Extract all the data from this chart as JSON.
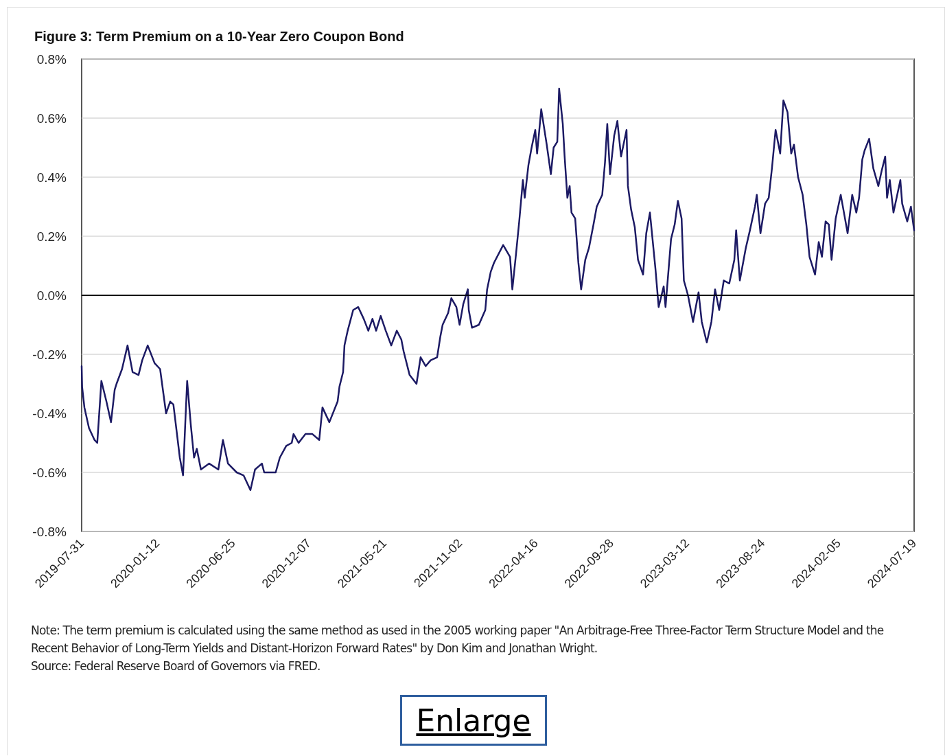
{
  "chart_data": {
    "type": "line",
    "title": "Figure 3: Term Premium on a 10-Year Zero Coupon Bond",
    "annotations": [
      "Note: The term premium is calculated using the same method as used in the 2005 working paper \"An Arbitrage-Free Three-Factor Term Structure Model and the Recent Behavior of Long-Term Yields and Distant-Horizon Forward Rates\" by Don Kim and Jonathan Wright.",
      "Source: Federal Reserve Board of Governors via FRED.",
      "Enlarge"
    ],
    "x": [
      "2019-07-31",
      "2019-08-01",
      "2019-08-06",
      "2019-08-16",
      "2019-08-28",
      "2019-09-03",
      "2019-09-12",
      "2019-09-23",
      "2019-10-03",
      "2019-10-11",
      "2019-10-15",
      "2019-10-27",
      "2019-11-08",
      "2019-11-19",
      "2019-12-02",
      "2019-12-10",
      "2019-12-22",
      "2020-01-06",
      "2020-01-18",
      "2020-01-31",
      "2020-02-09",
      "2020-02-16",
      "2020-03-01",
      "2020-03-08",
      "2020-03-13",
      "2020-03-17",
      "2020-03-25",
      "2020-04-01",
      "2020-04-07",
      "2020-04-16",
      "2020-05-04",
      "2020-05-24",
      "2020-06-03",
      "2020-06-14",
      "2020-07-03",
      "2020-07-18",
      "2020-08-02",
      "2020-08-12",
      "2020-08-27",
      "2020-09-01",
      "2020-09-26",
      "2020-10-05",
      "2020-10-19",
      "2020-10-31",
      "2020-11-04",
      "2020-11-15",
      "2020-11-30",
      "2020-12-15",
      "2020-12-30",
      "2021-01-06",
      "2021-01-21",
      "2021-02-08",
      "2021-02-12",
      "2021-02-20",
      "2021-02-23",
      "2021-03-02",
      "2021-03-14",
      "2021-03-25",
      "2021-04-06",
      "2021-04-16",
      "2021-04-25",
      "2021-05-03",
      "2021-05-13",
      "2021-05-24",
      "2021-06-05",
      "2021-06-17",
      "2021-06-27",
      "2021-07-02",
      "2021-07-15",
      "2021-07-30",
      "2021-08-08",
      "2021-08-19",
      "2021-08-30",
      "2021-09-13",
      "2021-09-20",
      "2021-09-25",
      "2021-10-07",
      "2021-10-14",
      "2021-10-25",
      "2021-11-01",
      "2021-11-09",
      "2021-11-19",
      "2021-11-21",
      "2021-11-28",
      "2021-12-13",
      "2021-12-27",
      "2021-12-31",
      "2022-01-08",
      "2022-01-15",
      "2022-02-04",
      "2022-02-19",
      "2022-02-24",
      "2022-03-04",
      "2022-03-11",
      "2022-03-19",
      "2022-03-23",
      "2022-03-31",
      "2022-04-07",
      "2022-04-15",
      "2022-04-19",
      "2022-04-28",
      "2022-05-10",
      "2022-05-19",
      "2022-05-25",
      "2022-06-02",
      "2022-06-06",
      "2022-06-14",
      "2022-06-18",
      "2022-06-24",
      "2022-06-29",
      "2022-07-03",
      "2022-07-11",
      "2022-07-18",
      "2022-07-24",
      "2022-08-02",
      "2022-08-10",
      "2022-08-20",
      "2022-08-27",
      "2022-09-08",
      "2022-09-14",
      "2022-09-19",
      "2022-09-25",
      "2022-10-04",
      "2022-10-11",
      "2022-10-19",
      "2022-10-31",
      "2022-11-03",
      "2022-11-10",
      "2022-11-18",
      "2022-11-25",
      "2022-12-06",
      "2022-12-13",
      "2022-12-21",
      "2023-01-02",
      "2023-01-09",
      "2023-01-20",
      "2023-01-24",
      "2023-02-05",
      "2023-02-13",
      "2023-02-20",
      "2023-02-28",
      "2023-03-05",
      "2023-03-14",
      "2023-03-25",
      "2023-04-06",
      "2023-04-13",
      "2023-04-24",
      "2023-05-04",
      "2023-05-12",
      "2023-05-21",
      "2023-05-31",
      "2023-06-12",
      "2023-06-23",
      "2023-06-27",
      "2023-07-05",
      "2023-07-18",
      "2023-07-27",
      "2023-08-07",
      "2023-08-11",
      "2023-08-19",
      "2023-08-29",
      "2023-09-06",
      "2023-09-13",
      "2023-09-21",
      "2023-10-01",
      "2023-10-08",
      "2023-10-17",
      "2023-10-25",
      "2023-10-31",
      "2023-11-09",
      "2023-11-19",
      "2023-11-27",
      "2023-12-04",
      "2023-12-16",
      "2023-12-24",
      "2023-12-31",
      "2024-01-08",
      "2024-01-15",
      "2024-01-21",
      "2024-01-30",
      "2024-02-10",
      "2024-02-17",
      "2024-02-25",
      "2024-03-06",
      "2024-03-15",
      "2024-03-21",
      "2024-03-28",
      "2024-04-02",
      "2024-04-12",
      "2024-04-21",
      "2024-05-02",
      "2024-05-09",
      "2024-05-17",
      "2024-05-21",
      "2024-05-27",
      "2024-06-04",
      "2024-06-19",
      "2024-06-23",
      "2024-07-04",
      "2024-07-12",
      "2024-07-19"
    ],
    "series": [
      {
        "color": "#1c1a64",
        "values": [
          -0.24,
          -0.31,
          -0.38,
          -0.45,
          -0.49,
          -0.5,
          -0.29,
          -0.36,
          -0.43,
          -0.32,
          -0.3,
          -0.25,
          -0.17,
          -0.26,
          -0.27,
          -0.22,
          -0.17,
          -0.23,
          -0.25,
          -0.4,
          -0.36,
          -0.37,
          -0.55,
          -0.61,
          -0.43,
          -0.29,
          -0.44,
          -0.55,
          -0.52,
          -0.59,
          -0.57,
          -0.59,
          -0.49,
          -0.57,
          -0.6,
          -0.61,
          -0.66,
          -0.59,
          -0.57,
          -0.6,
          -0.6,
          -0.55,
          -0.51,
          -0.5,
          -0.47,
          -0.5,
          -0.47,
          -0.47,
          -0.49,
          -0.38,
          -0.43,
          -0.36,
          -0.31,
          -0.26,
          -0.17,
          -0.12,
          -0.05,
          -0.04,
          -0.08,
          -0.12,
          -0.08,
          -0.12,
          -0.07,
          -0.12,
          -0.17,
          -0.12,
          -0.15,
          -0.19,
          -0.27,
          -0.3,
          -0.21,
          -0.24,
          -0.22,
          -0.21,
          -0.14,
          -0.1,
          -0.06,
          -0.01,
          -0.04,
          -0.1,
          -0.03,
          0.02,
          -0.05,
          -0.11,
          -0.1,
          -0.05,
          0.02,
          0.08,
          0.11,
          0.17,
          0.13,
          0.02,
          0.14,
          0.25,
          0.39,
          0.33,
          0.44,
          0.5,
          0.56,
          0.48,
          0.63,
          0.51,
          0.41,
          0.5,
          0.52,
          0.7,
          0.58,
          0.47,
          0.33,
          0.37,
          0.28,
          0.26,
          0.11,
          0.02,
          0.12,
          0.16,
          0.24,
          0.3,
          0.34,
          0.45,
          0.58,
          0.41,
          0.54,
          0.59,
          0.47,
          0.56,
          0.37,
          0.29,
          0.23,
          0.12,
          0.07,
          0.21,
          0.28,
          0.09,
          -0.04,
          0.03,
          -0.04,
          0.19,
          0.24,
          0.32,
          0.26,
          0.05,
          0.0,
          -0.09,
          0.01,
          -0.09,
          -0.16,
          -0.09,
          0.02,
          -0.05,
          0.05,
          0.04,
          0.12,
          0.22,
          0.05,
          0.16,
          0.22,
          0.3,
          0.34,
          0.21,
          0.31,
          0.33,
          0.43,
          0.56,
          0.48,
          0.66,
          0.62,
          0.48,
          0.51,
          0.4,
          0.34,
          0.24,
          0.13,
          0.07,
          0.18,
          0.13,
          0.25,
          0.24,
          0.12,
          0.26,
          0.34,
          0.28,
          0.21,
          0.34,
          0.28,
          0.33,
          0.46,
          0.49,
          0.53,
          0.43,
          0.37,
          0.42,
          0.47,
          0.33,
          0.39,
          0.28,
          0.39,
          0.31,
          0.25,
          0.3,
          0.22
        ]
      }
    ],
    "xlim": [
      "2019-07-31",
      "2024-07-19"
    ],
    "xticks": [
      "2019-07-31",
      "2020-01-12",
      "2020-06-25",
      "2020-12-07",
      "2021-05-21",
      "2021-11-02",
      "2022-04-16",
      "2022-09-28",
      "2023-03-12",
      "2023-08-24",
      "2024-02-05",
      "2024-07-19"
    ],
    "ylim": [
      -0.8,
      0.8
    ],
    "yticks": [
      {
        "value": -0.8,
        "label": "-0.8%"
      },
      {
        "value": -0.6,
        "label": "-0.6%"
      },
      {
        "value": -0.4,
        "label": "-0.4%"
      },
      {
        "value": -0.2,
        "label": "-0.2%"
      },
      {
        "value": 0,
        "label": "0.0%"
      },
      {
        "value": 0.2,
        "label": "0.2%"
      },
      {
        "value": 0.4,
        "label": "0.4%"
      },
      {
        "value": 0.6,
        "label": "0.6%"
      },
      {
        "value": 0.8,
        "label": "0.8%"
      }
    ],
    "ref_lines": [
      {
        "axis": "y",
        "value": 0,
        "color": "#000000"
      }
    ],
    "grid": "y",
    "marker": "none",
    "line_style": "solid"
  }
}
